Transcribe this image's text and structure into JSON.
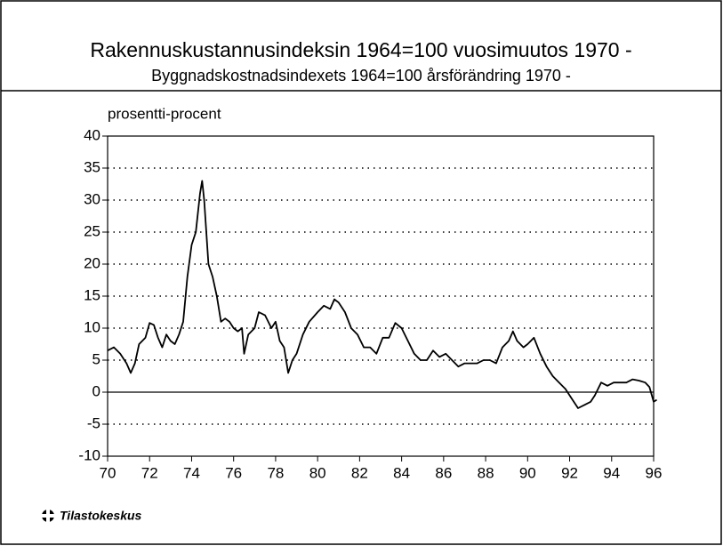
{
  "chart_data": {
    "type": "line",
    "title": "Rakennuskustannusindeksin  1964=100 vuosimuutos 1970 -",
    "subtitle": "Byggnadskostnadsindexets 1964=100 årsförändring 1970 -",
    "y_label": "prosentti-procent",
    "source": "Tilastokeskus",
    "x": [
      70.0,
      70.3,
      70.6,
      70.9,
      71.1,
      71.3,
      71.5,
      71.8,
      72.0,
      72.2,
      72.4,
      72.6,
      72.8,
      73.0,
      73.2,
      73.4,
      73.6,
      73.8,
      74.0,
      74.2,
      74.4,
      74.5,
      74.6,
      74.8,
      75.0,
      75.2,
      75.4,
      75.6,
      75.8,
      76.0,
      76.2,
      76.4,
      76.5,
      76.7,
      77.0,
      77.2,
      77.5,
      77.8,
      78.0,
      78.2,
      78.4,
      78.6,
      78.8,
      79.0,
      79.3,
      79.6,
      80.0,
      80.3,
      80.6,
      80.8,
      81.0,
      81.3,
      81.6,
      81.9,
      82.2,
      82.5,
      82.8,
      83.1,
      83.4,
      83.7,
      84.0,
      84.3,
      84.6,
      84.9,
      85.2,
      85.5,
      85.8,
      86.1,
      86.4,
      86.7,
      87.0,
      87.3,
      87.6,
      87.9,
      88.2,
      88.5,
      88.8,
      89.1,
      89.3,
      89.5,
      89.8,
      90.0,
      90.3,
      90.6,
      90.9,
      91.2,
      91.5,
      91.8,
      92.1,
      92.4,
      92.7,
      93.0,
      93.2,
      93.5,
      93.8,
      94.1,
      94.4,
      94.7,
      95.0,
      95.3,
      95.6,
      95.8,
      96.0,
      96.15
    ],
    "series": [
      {
        "name": "vuosimuutos",
        "color": "#000000",
        "values": [
          6.5,
          7,
          6,
          4.5,
          3,
          4.5,
          7.5,
          8.5,
          10.8,
          10.5,
          8.5,
          7,
          9,
          8,
          7.5,
          9,
          11,
          18,
          23,
          25,
          31,
          33,
          30,
          20,
          18,
          15,
          11,
          11.5,
          11,
          10,
          9.5,
          10,
          6,
          9,
          10,
          12.5,
          12,
          10,
          11,
          8,
          7,
          3,
          5,
          6,
          9,
          11,
          12.5,
          13.5,
          13,
          14.5,
          14,
          12.5,
          10,
          9,
          7,
          7,
          6,
          8.5,
          8.5,
          10.8,
          10,
          8,
          6,
          5,
          5,
          6.5,
          5.5,
          6,
          5,
          4,
          4.5,
          4.5,
          4.5,
          5,
          5,
          4.5,
          7,
          8,
          9.5,
          8,
          7,
          7.5,
          8.5,
          6,
          4,
          2.5,
          1.5,
          0.5,
          -1,
          -2.5,
          -2,
          -1.5,
          -0.5,
          1.5,
          1,
          1.5,
          1.5,
          1.5,
          2,
          1.8,
          1.5,
          0.8,
          -1.5,
          -1.2
        ]
      }
    ],
    "xlim": [
      70,
      96
    ],
    "xticks": [
      70,
      72,
      74,
      76,
      78,
      80,
      82,
      84,
      86,
      88,
      90,
      92,
      94,
      96
    ],
    "ylim": [
      -10,
      40
    ],
    "yticks": [
      -10,
      -5,
      0,
      5,
      10,
      15,
      20,
      25,
      30,
      35,
      40
    ],
    "grid": true
  }
}
